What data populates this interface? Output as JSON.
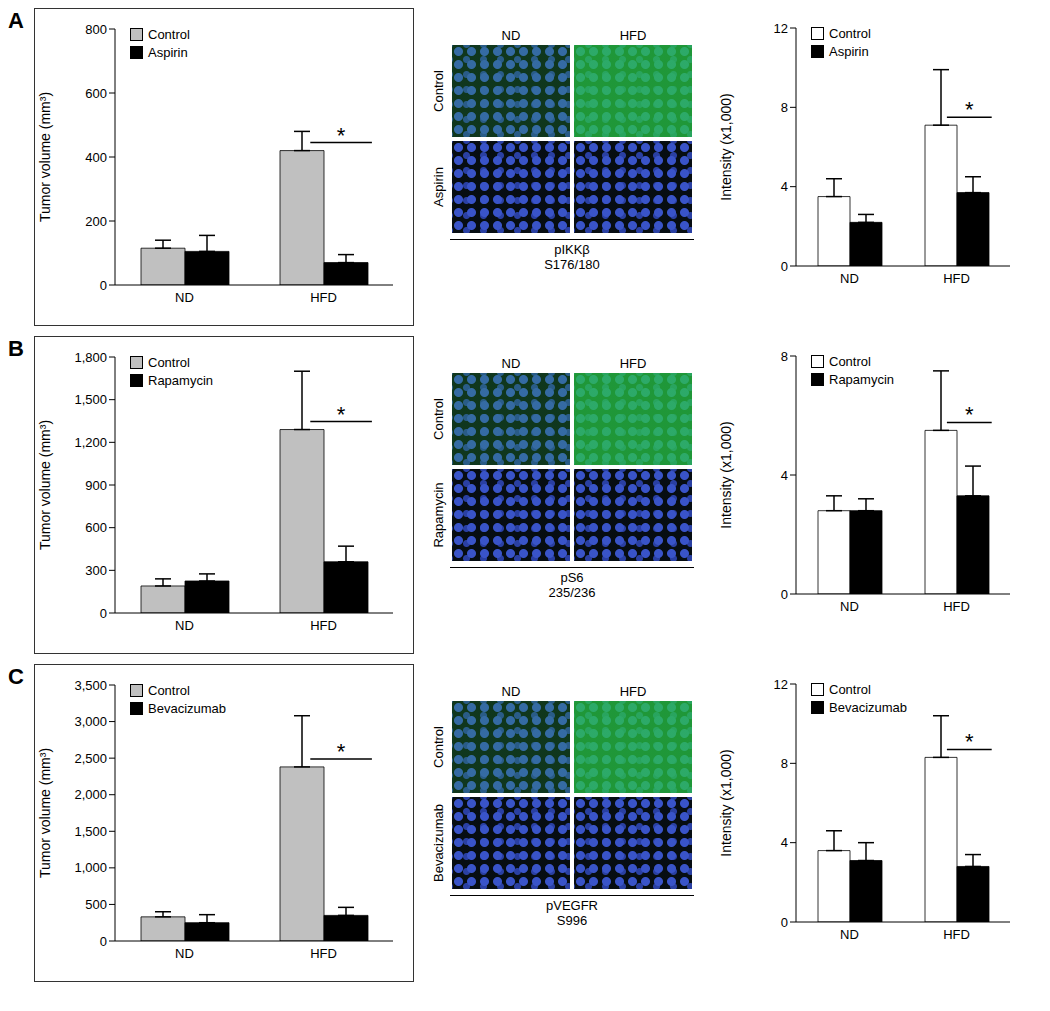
{
  "chart_data": [
    {
      "type": "bar",
      "categories": [
        "ND",
        "HFD"
      ],
      "y_label": "Tumor volume (mm³)",
      "ylim": [
        0,
        800
      ],
      "yticks": [
        0,
        200,
        400,
        600,
        800
      ],
      "legend": "upper left",
      "series": [
        {
          "name": "Control",
          "color": "#c0c0c0",
          "values": [
            115,
            420
          ],
          "errors": [
            25,
            60
          ]
        },
        {
          "name": "Aspirin",
          "color": "#000000",
          "values": [
            105,
            70
          ],
          "errors": [
            50,
            25
          ]
        }
      ],
      "annotations": [
        {
          "text": "*",
          "category": "HFD"
        }
      ]
    },
    {
      "type": "bar",
      "categories": [
        "ND",
        "HFD"
      ],
      "y_label": "Intensity (x1,000)",
      "ylim": [
        0,
        12
      ],
      "yticks": [
        0,
        4,
        8,
        12
      ],
      "legend": "upper left",
      "series": [
        {
          "name": "Control",
          "color": "#ffffff",
          "values": [
            3.5,
            7.1
          ],
          "errors": [
            0.9,
            2.8
          ]
        },
        {
          "name": "Aspirin",
          "color": "#000000",
          "values": [
            2.2,
            3.7
          ],
          "errors": [
            0.4,
            0.8
          ]
        }
      ],
      "annotations": [
        {
          "text": "*",
          "category": "HFD"
        }
      ]
    },
    {
      "type": "bar",
      "categories": [
        "ND",
        "HFD"
      ],
      "y_label": "Tumor volume (mm³)",
      "ylim": [
        0,
        1800
      ],
      "yticks": [
        0,
        300,
        600,
        900,
        {
          "value": 1200,
          "label": "1,200"
        },
        {
          "value": 1500,
          "label": "1,500"
        },
        {
          "value": 1800,
          "label": "1,800"
        }
      ],
      "legend": "upper left",
      "series": [
        {
          "name": "Control",
          "color": "#c0c0c0",
          "values": [
            190,
            1290
          ],
          "errors": [
            50,
            410
          ]
        },
        {
          "name": "Rapamycin",
          "color": "#000000",
          "values": [
            225,
            360
          ],
          "errors": [
            50,
            110
          ]
        }
      ],
      "annotations": [
        {
          "text": "*",
          "category": "HFD"
        }
      ]
    },
    {
      "type": "bar",
      "categories": [
        "ND",
        "HFD"
      ],
      "y_label": "Intensity (x1,000)",
      "ylim": [
        0,
        8
      ],
      "yticks": [
        0,
        4,
        8
      ],
      "legend": "upper left",
      "series": [
        {
          "name": "Control",
          "color": "#ffffff",
          "values": [
            2.8,
            5.5
          ],
          "errors": [
            0.5,
            2.0
          ]
        },
        {
          "name": "Rapamycin",
          "color": "#000000",
          "values": [
            2.8,
            3.3
          ],
          "errors": [
            0.4,
            1.0
          ]
        }
      ],
      "annotations": [
        {
          "text": "*",
          "category": "HFD"
        }
      ]
    },
    {
      "type": "bar",
      "categories": [
        "ND",
        "HFD"
      ],
      "y_label": "Tumor volume (mm³)",
      "ylim": [
        0,
        3500
      ],
      "yticks": [
        0,
        500,
        {
          "value": 1000,
          "label": "1,000"
        },
        {
          "value": 1500,
          "label": "1,500"
        },
        {
          "value": 2000,
          "label": "2,000"
        },
        {
          "value": 2500,
          "label": "2,500"
        },
        {
          "value": 3000,
          "label": "3,000"
        },
        {
          "value": 3500,
          "label": "3,500"
        }
      ],
      "legend": "upper left",
      "series": [
        {
          "name": "Control",
          "color": "#c0c0c0",
          "values": [
            330,
            2380
          ],
          "errors": [
            70,
            700
          ]
        },
        {
          "name": "Bevacizumab",
          "color": "#000000",
          "values": [
            250,
            350
          ],
          "errors": [
            110,
            110
          ]
        }
      ],
      "annotations": [
        {
          "text": "*",
          "category": "HFD"
        }
      ]
    },
    {
      "type": "bar",
      "categories": [
        "ND",
        "HFD"
      ],
      "y_label": "Intensity (x1,000)",
      "ylim": [
        0,
        12
      ],
      "yticks": [
        0,
        4,
        8,
        12
      ],
      "legend": "upper left",
      "series": [
        {
          "name": "Control",
          "color": "#ffffff",
          "values": [
            3.6,
            8.3
          ],
          "errors": [
            1.0,
            2.1
          ]
        },
        {
          "name": "Bevacizumab",
          "color": "#000000",
          "values": [
            3.1,
            2.8
          ],
          "errors": [
            0.9,
            0.6
          ]
        }
      ],
      "annotations": [
        {
          "text": "*",
          "category": "HFD"
        }
      ]
    }
  ],
  "panels": [
    {
      "label": "A",
      "images": {
        "columns": [
          "ND",
          "HFD"
        ],
        "rows": [
          "Control",
          "Aspirin"
        ],
        "stain": "pIKKβ",
        "site": "S176/180"
      }
    },
    {
      "label": "B",
      "images": {
        "columns": [
          "ND",
          "HFD"
        ],
        "rows": [
          "Control",
          "Rapamycin"
        ],
        "stain": "pS6",
        "site": "235/236"
      }
    },
    {
      "label": "C",
      "images": {
        "columns": [
          "ND",
          "HFD"
        ],
        "rows": [
          "Control",
          "Bevacizumab"
        ],
        "stain": "pVEGFR",
        "site": "S996"
      }
    }
  ]
}
